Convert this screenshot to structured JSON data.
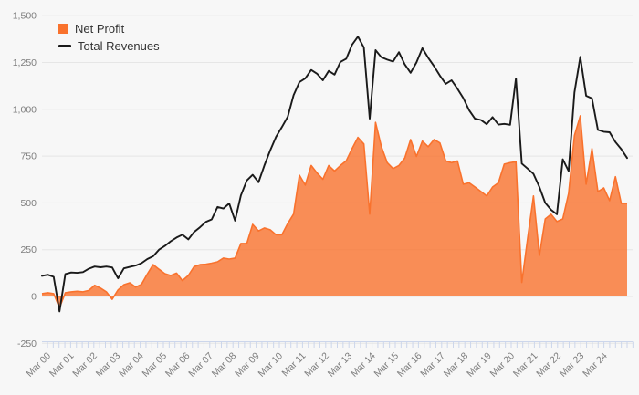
{
  "chart_data": {
    "type": "combo",
    "legend_position": "top-left",
    "grid": true,
    "background_color": "#f7f7f7",
    "grid_color": "#e6e6e6",
    "axis_tick_color": "#ccd6eb",
    "axis_label_color": "#7d7d7d",
    "xlabel": "",
    "ylabel": "",
    "ylim": [
      -250,
      1500
    ],
    "y_ticks": [
      {
        "value": 1500,
        "label": "1,500"
      },
      {
        "value": 1250,
        "label": "1,250"
      },
      {
        "value": 1000,
        "label": "1,000"
      },
      {
        "value": 750,
        "label": "750"
      },
      {
        "value": 500,
        "label": "500"
      },
      {
        "value": 250,
        "label": "250"
      },
      {
        "value": 0,
        "label": "0"
      },
      {
        "value": -250,
        "label": "-250"
      }
    ],
    "x_labels": [
      "Mar 00",
      "Mar 01",
      "Mar 02",
      "Mar 03",
      "Mar 04",
      "Mar 05",
      "Mar 06",
      "Mar 07",
      "Mar 08",
      "Mar 09",
      "Mar 10",
      "Mar 11",
      "Mar 12",
      "Mar 13",
      "Mar 14",
      "Mar 15",
      "Mar 16",
      "Mar 17",
      "Mar 18",
      "Mar 19",
      "Mar 20",
      "Mar 21",
      "Mar 22",
      "Mar 23",
      "Mar 24"
    ],
    "points_per_label": 4,
    "series": [
      {
        "name": "Net Profit",
        "type": "area",
        "color": "#f9722d",
        "fill_opacity": 0.8,
        "values": [
          15,
          20,
          15,
          -60,
          20,
          25,
          28,
          25,
          32,
          60,
          45,
          25,
          -15,
          35,
          63,
          73,
          50,
          65,
          120,
          170,
          145,
          122,
          112,
          125,
          85,
          112,
          160,
          170,
          172,
          178,
          185,
          205,
          200,
          205,
          283,
          283,
          385,
          350,
          366,
          356,
          330,
          330,
          390,
          440,
          648,
          595,
          700,
          660,
          626,
          700,
          670,
          700,
          725,
          790,
          850,
          815,
          440,
          930,
          800,
          715,
          683,
          700,
          740,
          838,
          748,
          830,
          800,
          838,
          820,
          724,
          715,
          724,
          600,
          607,
          585,
          561,
          537,
          585,
          607,
          707,
          715,
          720,
          75,
          310,
          537,
          219,
          414,
          439,
          400,
          414,
          550,
          860,
          965,
          600,
          790,
          560,
          580,
          512,
          640,
          497,
          497
        ]
      },
      {
        "name": "Total Revenues",
        "type": "line",
        "color": "#1a1a1a",
        "values": [
          110,
          116,
          105,
          -80,
          120,
          128,
          126,
          130,
          148,
          160,
          156,
          160,
          155,
          97,
          150,
          158,
          165,
          178,
          200,
          215,
          250,
          270,
          295,
          315,
          330,
          305,
          345,
          370,
          398,
          412,
          478,
          470,
          497,
          405,
          540,
          620,
          650,
          610,
          700,
          780,
          853,
          905,
          960,
          1075,
          1145,
          1165,
          1210,
          1190,
          1155,
          1205,
          1185,
          1253,
          1270,
          1345,
          1388,
          1330,
          950,
          1316,
          1278,
          1265,
          1255,
          1305,
          1240,
          1195,
          1250,
          1326,
          1275,
          1230,
          1180,
          1136,
          1155,
          1110,
          1060,
          995,
          950,
          943,
          920,
          958,
          918,
          922,
          917,
          1165,
          710,
          683,
          655,
          585,
          500,
          463,
          439,
          733,
          670,
          1090,
          1280,
          1072,
          1058,
          890,
          880,
          877,
          825,
          787,
          740
        ]
      }
    ]
  }
}
